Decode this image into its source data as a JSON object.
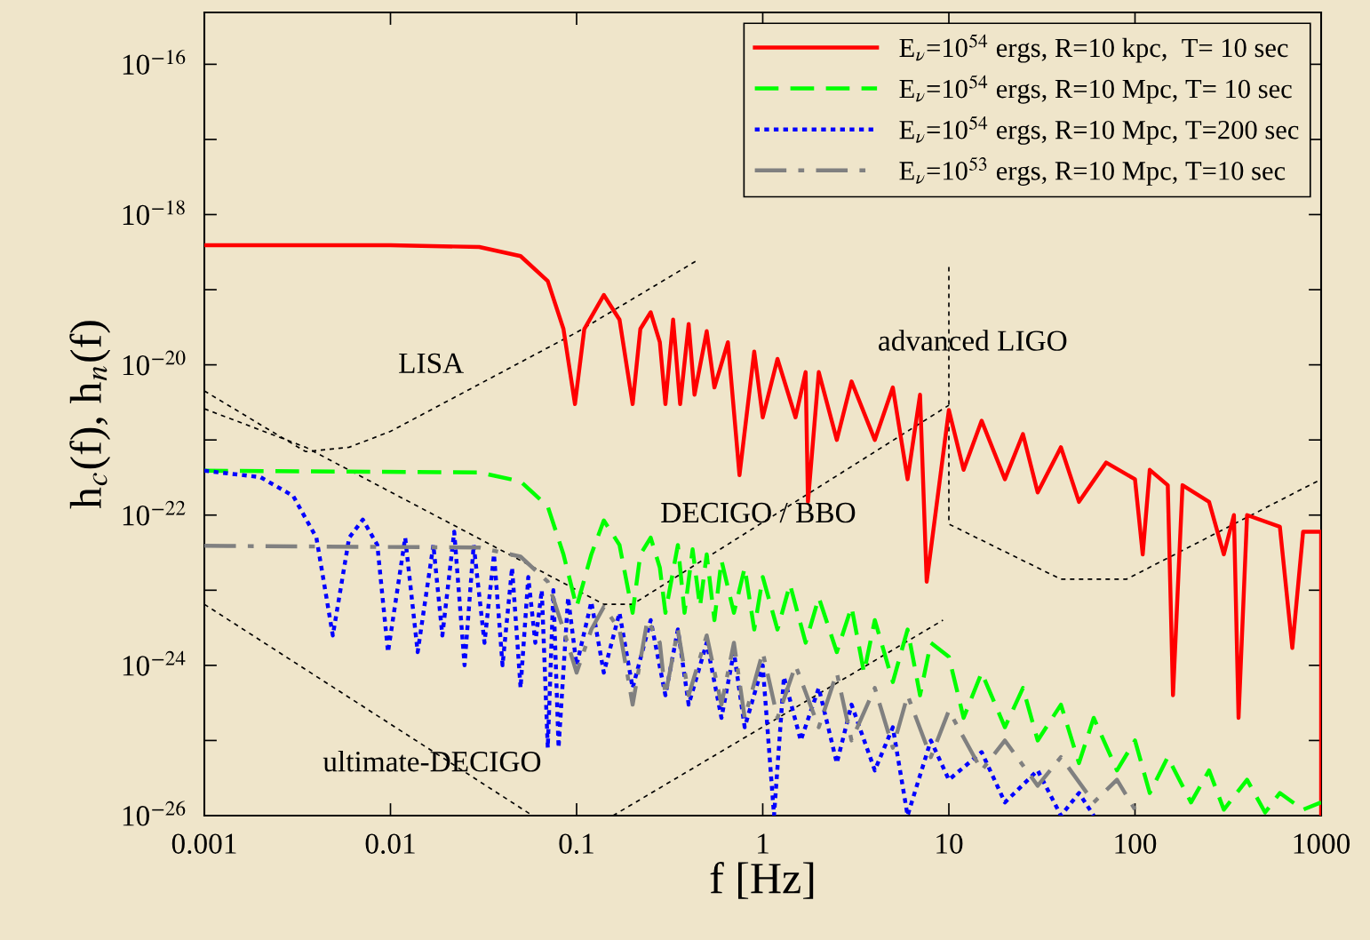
{
  "chart_data": {
    "type": "line",
    "xlabel": "f [Hz]",
    "ylabel": "h$_{c}$(f), h$_{n}$(f)",
    "log": "xy",
    "xlim": [
      0.001,
      1000
    ],
    "ylim": [
      1e-26,
      4.9e-16
    ],
    "xticks": [
      0.001,
      0.01,
      0.1,
      1,
      10,
      100,
      1000
    ],
    "yticks": [
      {
        "value": 1e-16,
        "label": "10$^{−16}$"
      },
      {
        "value": 1e-17,
        "label": null
      },
      {
        "value": 1e-18,
        "label": "10$^{−18}$"
      },
      {
        "value": 1e-19,
        "label": null
      },
      {
        "value": 1e-20,
        "label": "10$^{−20}$"
      },
      {
        "value": 1e-21,
        "label": null
      },
      {
        "value": 1e-22,
        "label": "10$^{−22}$"
      },
      {
        "value": 1e-23,
        "label": null
      },
      {
        "value": 1e-24,
        "label": "10$^{−24}$"
      },
      {
        "value": 1e-25,
        "label": null
      },
      {
        "value": 1e-26,
        "label": "10$^{−26}$"
      }
    ],
    "grid": false,
    "legend": "top right",
    "annotations": [
      "LISA",
      "advanced LIGO",
      "DECIGO / BBO",
      "ultimate-DECIGO"
    ],
    "series": [
      {
        "name": "E$_{ν}$=10$^{54}$ ergs, R=10 kpc,  T= 10 sec",
        "color": "#ff0000",
        "line_style": "solid",
        "x": [
          0.001,
          0.01,
          0.03,
          0.05,
          0.07,
          0.085,
          0.098,
          0.11,
          0.14,
          0.17,
          0.2,
          0.22,
          0.25,
          0.28,
          0.3,
          0.33,
          0.36,
          0.4,
          0.43,
          0.5,
          0.55,
          0.65,
          0.75,
          0.9,
          1.0,
          1.2,
          1.5,
          1.7,
          1.75,
          2,
          2.5,
          3,
          4,
          5,
          6,
          7,
          7.6,
          10,
          12,
          15,
          20,
          25,
          30,
          40,
          50,
          70,
          100,
          110,
          120,
          150,
          160,
          180,
          250,
          300,
          340,
          360,
          400,
          600,
          700,
          800,
          1000,
          1000
        ],
        "values": [
          3.9e-19,
          3.9e-19,
          3.7e-19,
          2.8e-19,
          1.3e-19,
          3e-20,
          3e-21,
          3e-20,
          8.5e-20,
          4e-20,
          3e-21,
          3e-20,
          5e-20,
          2e-20,
          3e-21,
          4e-20,
          3e-21,
          3.5e-20,
          4e-21,
          2.8e-20,
          5e-21,
          2e-20,
          3.4e-22,
          1.5e-20,
          2e-21,
          1.2e-20,
          2e-21,
          8e-21,
          1.5e-22,
          8e-21,
          1e-21,
          6e-21,
          1e-21,
          5e-21,
          3e-22,
          4e-21,
          1.3e-23,
          2.5e-21,
          4e-22,
          1.8e-21,
          3e-22,
          1.2e-21,
          2e-22,
          8e-22,
          1.5e-22,
          5e-22,
          3e-22,
          3e-23,
          4e-22,
          2.5e-22,
          4e-25,
          2.5e-22,
          1.5e-22,
          3e-23,
          1e-22,
          2e-25,
          1e-22,
          7e-23,
          1.7e-24,
          6e-23,
          6e-23,
          1e-26
        ]
      },
      {
        "name": "E$_{ν}$=10$^{54}$ ergs, R=10 Mpc, T= 10 sec",
        "color": "#00ff00",
        "line_style": "dashed",
        "x": [
          0.001,
          0.03,
          0.05,
          0.07,
          0.085,
          0.1,
          0.12,
          0.14,
          0.17,
          0.2,
          0.22,
          0.25,
          0.28,
          0.3,
          0.35,
          0.38,
          0.42,
          0.46,
          0.5,
          0.55,
          0.6,
          0.7,
          0.8,
          0.9,
          1.0,
          1.2,
          1.4,
          1.7,
          2,
          2.5,
          3,
          3.5,
          4,
          5,
          6,
          7,
          8,
          10,
          12,
          15,
          20,
          25,
          30,
          40,
          50,
          60,
          80,
          100,
          120,
          150,
          200,
          250,
          300,
          400,
          500,
          600,
          800,
          1000
        ],
        "values": [
          3.9e-22,
          3.7e-22,
          2.8e-22,
          1.3e-22,
          3e-23,
          6e-24,
          3e-23,
          8.5e-23,
          4e-23,
          5e-24,
          3e-23,
          5e-23,
          2e-23,
          5e-24,
          4e-23,
          5e-24,
          3.5e-23,
          6e-24,
          3e-23,
          4e-24,
          2.5e-23,
          5e-24,
          2e-23,
          3e-24,
          1.5e-23,
          3e-24,
          1.2e-23,
          2e-24,
          8e-24,
          1.5e-24,
          6e-24,
          8e-25,
          4e-24,
          6e-25,
          3e-24,
          4e-25,
          2e-24,
          1.3e-24,
          2e-25,
          8e-25,
          1.5e-25,
          5e-25,
          1e-25,
          3e-25,
          5e-26,
          2e-25,
          4e-26,
          1e-25,
          2e-26,
          6e-26,
          1.5e-26,
          4e-26,
          1.2e-26,
          3e-26,
          1.1e-26,
          2e-26,
          1.2e-26,
          1.5e-26
        ]
      },
      {
        "name": "E$_{ν}$=10$^{54}$ ergs, R=10 Mpc, T=200 sec",
        "color": "#0000ff",
        "line_style": "dotted",
        "x": [
          0.001,
          0.002,
          0.003,
          0.004,
          0.0049,
          0.006,
          0.0071,
          0.0085,
          0.0097,
          0.012,
          0.014,
          0.017,
          0.019,
          0.022,
          0.025,
          0.028,
          0.032,
          0.036,
          0.04,
          0.045,
          0.05,
          0.055,
          0.06,
          0.065,
          0.07,
          0.075,
          0.08,
          0.09,
          0.1,
          0.12,
          0.14,
          0.17,
          0.2,
          0.25,
          0.3,
          0.35,
          0.4,
          0.5,
          0.6,
          0.7,
          0.8,
          1.0,
          1.15,
          1.3,
          1.6,
          2,
          2.5,
          3,
          4,
          5,
          6,
          8,
          10,
          15,
          20,
          30,
          40,
          50,
          60
        ],
        "values": [
          3.9e-22,
          3.2e-22,
          1.8e-22,
          5e-23,
          2.5e-24,
          5e-23,
          8.7e-23,
          4e-23,
          1.5e-24,
          5e-23,
          1.5e-24,
          4e-23,
          2.5e-24,
          6e-23,
          1e-24,
          4e-23,
          2e-24,
          3e-23,
          1e-24,
          2e-23,
          5e-25,
          1.5e-23,
          2e-24,
          1e-23,
          8e-26,
          1e-23,
          8e-26,
          8e-24,
          1e-24,
          7e-24,
          8e-25,
          5e-24,
          5e-25,
          4e-24,
          4e-25,
          3e-24,
          3e-25,
          2e-24,
          2e-25,
          1.5e-24,
          1.5e-25,
          1e-24,
          1e-26,
          7e-25,
          1e-25,
          5e-25,
          5e-26,
          3e-25,
          4e-26,
          1.5e-25,
          1e-26,
          1e-25,
          3e-26,
          7e-26,
          1.5e-26,
          4e-26,
          1e-26,
          2e-26,
          1e-26
        ]
      },
      {
        "name": "E$_{ν}$=10$^{53}$ ergs, R=10 Mpc, T=10 sec",
        "color": "#808080",
        "line_style": "dashdot",
        "x": [
          0.001,
          0.03,
          0.05,
          0.07,
          0.085,
          0.1,
          0.12,
          0.14,
          0.17,
          0.2,
          0.24,
          0.28,
          0.3,
          0.35,
          0.4,
          0.5,
          0.6,
          0.7,
          0.8,
          1,
          1.2,
          1.5,
          2,
          2.5,
          3,
          4,
          5,
          6,
          8,
          10,
          15,
          20,
          30,
          40,
          60,
          80,
          100
        ],
        "values": [
          3.9e-23,
          3.7e-23,
          2.8e-23,
          1.3e-23,
          3e-24,
          8e-25,
          3e-24,
          6e-24,
          3e-24,
          3e-25,
          4e-24,
          2e-24,
          4e-25,
          3e-24,
          4e-25,
          2.5e-24,
          3e-25,
          2e-24,
          2e-25,
          1.5e-24,
          2e-25,
          1e-24,
          1.5e-25,
          8e-25,
          1e-25,
          5e-25,
          8e-26,
          4e-25,
          6e-26,
          2.5e-25,
          4e-26,
          1e-25,
          2.5e-26,
          6e-26,
          1.5e-26,
          3e-26,
          1.2e-26
        ]
      },
      {
        "color": "#000000",
        "line_style": "dashed",
        "x": [
          0.001,
          0.002,
          0.0035,
          0.006,
          0.01,
          0.1,
          0.45
        ],
        "values": [
          4.5e-21,
          1.6e-21,
          7e-22,
          8e-22,
          1.3e-21,
          2.7e-20,
          2.5e-19
        ]
      },
      {
        "color": "#000000",
        "line_style": "dashed",
        "x": [
          0.001,
          0.0035,
          0.14,
          0.2,
          10
        ],
        "values": [
          2.6e-21,
          8e-22,
          6.5e-24,
          6.5e-24,
          2.9e-21
        ]
      },
      {
        "color": "#000000",
        "line_style": "dashed",
        "x": [
          0.001,
          0.058
        ],
        "values": [
          6.5e-24,
          1e-26
        ]
      },
      {
        "color": "#000000",
        "line_style": "dashed",
        "x": [
          0.157,
          9.3
        ],
        "values": [
          1e-26,
          4e-24
        ]
      },
      {
        "color": "#000000",
        "line_style": "dashed",
        "x": [
          10,
          10,
          40,
          90,
          1000
        ],
        "values": [
          2e-19,
          7.6e-23,
          1.4e-23,
          1.4e-23,
          3e-22
        ]
      }
    ]
  }
}
